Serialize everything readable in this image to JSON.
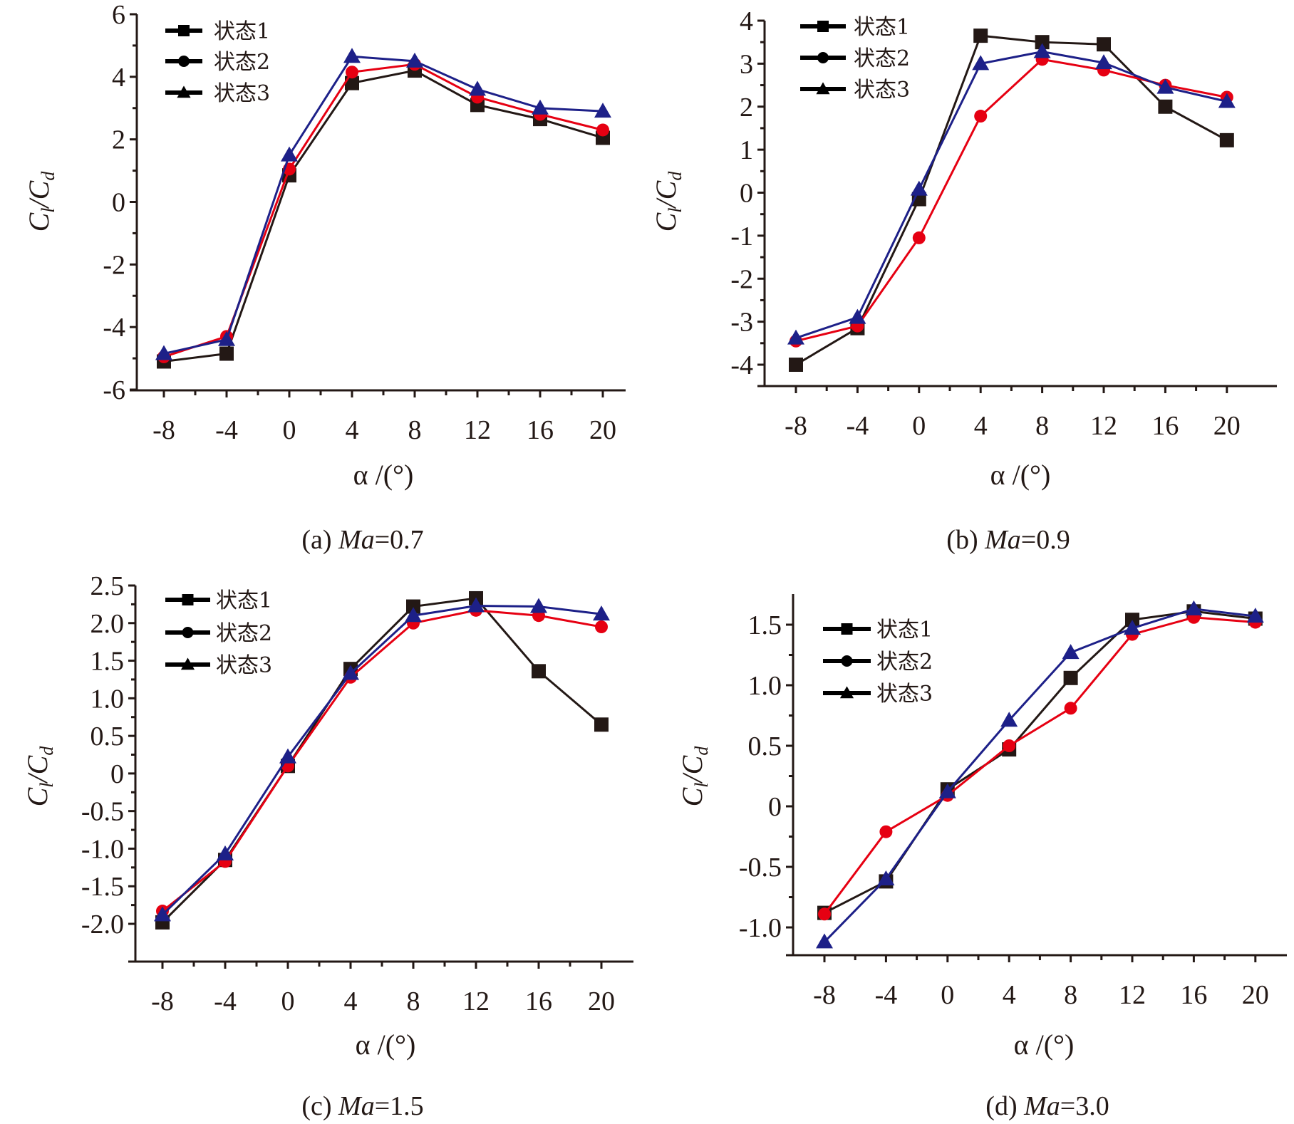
{
  "figure": {
    "legend": [
      "状态1",
      "状态2",
      "状态3"
    ],
    "series_styles": [
      {
        "name": "状态1",
        "marker": "square",
        "color": "#231815"
      },
      {
        "name": "状态2",
        "marker": "circle",
        "color": "#e60012"
      },
      {
        "name": "状态3",
        "marker": "triangle",
        "color": "#1d2088"
      }
    ],
    "legend_marker_color": "#000000"
  },
  "chart_data": [
    {
      "type": "line",
      "panel": "a",
      "caption_prefix": "(a)",
      "caption_var": "Ma",
      "caption_value": "=0.7",
      "xlabel": "α /(°)",
      "ylabel_main": "C",
      "ylabel_sub1": "l",
      "ylabel_slash": "/",
      "ylabel_sub2": "d",
      "x": [
        -8,
        -4,
        0,
        4,
        8,
        12,
        16,
        20
      ],
      "xticks": [
        "-8",
        "-4",
        "0",
        "4",
        "8",
        "12",
        "16",
        "20"
      ],
      "ylim": [
        -6,
        6
      ],
      "yticks": [
        6,
        4,
        2,
        0,
        -2,
        -4,
        -6
      ],
      "ytick_labels": [
        "6",
        "4",
        "2",
        "0",
        "-2",
        "-4",
        "-6"
      ],
      "legend_position": "top-left",
      "series": [
        {
          "name": "状态1",
          "values": [
            -5.1,
            -4.85,
            0.85,
            3.8,
            4.2,
            3.1,
            2.65,
            2.05
          ]
        },
        {
          "name": "状态2",
          "values": [
            -4.95,
            -4.3,
            1.05,
            4.15,
            4.4,
            3.35,
            2.8,
            2.3
          ]
        },
        {
          "name": "状态3",
          "values": [
            -4.85,
            -4.4,
            1.5,
            4.65,
            4.5,
            3.6,
            3.0,
            2.9
          ]
        }
      ]
    },
    {
      "type": "line",
      "panel": "b",
      "caption_prefix": "(b)",
      "caption_var": "Ma",
      "caption_value": "=0.9",
      "xlabel": "α /(°)",
      "ylabel_main": "C",
      "ylabel_sub1": "l",
      "ylabel_slash": "/",
      "ylabel_sub2": "d",
      "x": [
        -8,
        -4,
        0,
        4,
        8,
        12,
        16,
        20
      ],
      "xticks": [
        "-8",
        "-4",
        "0",
        "4",
        "8",
        "12",
        "16",
        "20"
      ],
      "ylim": [
        -4,
        4
      ],
      "yticks": [
        4,
        3,
        2,
        1,
        0,
        -1,
        -2,
        -3,
        -4
      ],
      "ytick_labels": [
        "4",
        "3",
        "2",
        "1",
        "0",
        "-1",
        "-2",
        "-3",
        "-4"
      ],
      "legend_position": "top-left",
      "series": [
        {
          "name": "状态1",
          "values": [
            -4.0,
            -3.15,
            -0.15,
            3.65,
            3.5,
            3.45,
            2.0,
            1.22
          ]
        },
        {
          "name": "状态2",
          "values": [
            -3.45,
            -3.1,
            -1.05,
            1.78,
            3.1,
            2.85,
            2.5,
            2.22
          ]
        },
        {
          "name": "状态3",
          "values": [
            -3.38,
            -2.9,
            0.08,
            3.0,
            3.28,
            3.02,
            2.45,
            2.12
          ]
        }
      ]
    },
    {
      "type": "line",
      "panel": "c",
      "caption_prefix": "(c)",
      "caption_var": "Ma",
      "caption_value": "=1.5",
      "xlabel": "α /(°)",
      "ylabel_main": "C",
      "ylabel_sub1": "l",
      "ylabel_slash": "/",
      "ylabel_sub2": "d",
      "x": [
        -8,
        -4,
        0,
        4,
        8,
        12,
        16,
        20
      ],
      "xticks": [
        "-8",
        "-4",
        "0",
        "4",
        "8",
        "12",
        "16",
        "20"
      ],
      "ylim": [
        -2.0,
        2.5
      ],
      "yticks": [
        2.5,
        2.0,
        1.5,
        1.0,
        0.5,
        0,
        -0.5,
        -1.0,
        -1.5,
        -2.0
      ],
      "ytick_labels": [
        "2.5",
        "2.0",
        "1.5",
        "1.0",
        "0.5",
        "0",
        "-0.5",
        "-1.0",
        "-1.5",
        "-2.0"
      ],
      "legend_position": "top-left",
      "series": [
        {
          "name": "状态1",
          "values": [
            -1.98,
            -1.15,
            0.1,
            1.39,
            2.22,
            2.33,
            1.36,
            0.65
          ]
        },
        {
          "name": "状态2",
          "values": [
            -1.83,
            -1.17,
            0.1,
            1.28,
            2.0,
            2.17,
            2.1,
            1.95
          ]
        },
        {
          "name": "状态3",
          "values": [
            -1.88,
            -1.07,
            0.22,
            1.33,
            2.1,
            2.23,
            2.22,
            2.12
          ]
        }
      ]
    },
    {
      "type": "line",
      "panel": "d",
      "caption_prefix": "(d)",
      "caption_var": "Ma",
      "caption_value": "=3.0",
      "xlabel": "α /(°)",
      "ylabel_main": "C",
      "ylabel_sub1": "l",
      "ylabel_slash": "/",
      "ylabel_sub2": "d",
      "x": [
        -8,
        -4,
        0,
        4,
        8,
        12,
        16,
        20
      ],
      "xticks": [
        "-8",
        "-4",
        "0",
        "4",
        "8",
        "12",
        "16",
        "20"
      ],
      "ylim": [
        -1.25,
        1.75
      ],
      "yticks": [
        1.5,
        1.0,
        0.5,
        0,
        -0.5,
        -1.0
      ],
      "ytick_labels": [
        "1.5",
        "1.0",
        "0.5",
        "0",
        "-0.5",
        "-1.0"
      ],
      "legend_position": "top-left",
      "series": [
        {
          "name": "状态1",
          "values": [
            -0.88,
            -0.62,
            0.14,
            0.47,
            1.06,
            1.54,
            1.61,
            1.55
          ]
        },
        {
          "name": "状态2",
          "values": [
            -0.89,
            -0.21,
            0.09,
            0.5,
            0.81,
            1.42,
            1.56,
            1.52
          ]
        },
        {
          "name": "状态3",
          "values": [
            -1.12,
            -0.6,
            0.12,
            0.71,
            1.27,
            1.47,
            1.63,
            1.57
          ]
        }
      ]
    }
  ]
}
